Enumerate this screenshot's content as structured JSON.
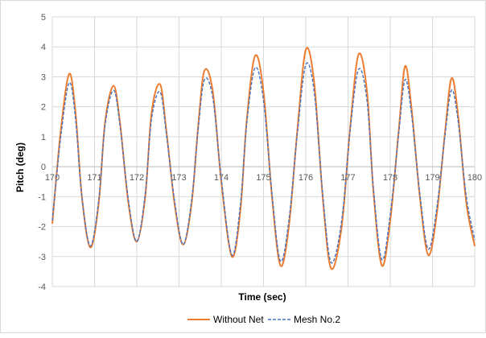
{
  "chart_data": {
    "type": "line",
    "title": "",
    "xlabel": "Time (sec)",
    "ylabel": "Pitch (deg)",
    "xlim": [
      170,
      180
    ],
    "ylim": [
      -4,
      5
    ],
    "x_ticks": [
      "170",
      "171",
      "172",
      "173",
      "174",
      "175",
      "176",
      "177",
      "178",
      "179",
      "180"
    ],
    "y_ticks": [
      "-4",
      "-3",
      "-2",
      "-1",
      "0",
      "1",
      "2",
      "3",
      "4",
      "5"
    ],
    "grid": true,
    "legend_position": "bottom",
    "series": [
      {
        "name": "Without Net",
        "color": "#ED7D31",
        "dash": "solid",
        "x": [
          170.0,
          170.2,
          170.4,
          170.55,
          170.7,
          170.9,
          171.1,
          171.25,
          171.45,
          171.6,
          171.8,
          172.0,
          172.2,
          172.35,
          172.55,
          172.7,
          172.9,
          173.1,
          173.3,
          173.45,
          173.6,
          173.8,
          174.0,
          174.25,
          174.45,
          174.6,
          174.8,
          175.0,
          175.2,
          175.4,
          175.6,
          175.8,
          176.0,
          176.2,
          176.4,
          176.6,
          176.85,
          177.05,
          177.25,
          177.45,
          177.6,
          177.8,
          178.0,
          178.2,
          178.35,
          178.5,
          178.7,
          178.9,
          179.1,
          179.3,
          179.45,
          179.6,
          179.8,
          180.0
        ],
        "y": [
          -1.9,
          1.2,
          3.1,
          1.8,
          -1.0,
          -2.7,
          -1.2,
          1.5,
          2.7,
          1.5,
          -1.2,
          -2.5,
          -1.0,
          1.8,
          2.75,
          1.2,
          -1.3,
          -2.6,
          -1.2,
          1.3,
          3.2,
          2.5,
          -0.5,
          -3.0,
          -1.5,
          1.5,
          3.7,
          2.5,
          -1.0,
          -3.3,
          -2.0,
          1.2,
          3.9,
          2.8,
          -1.0,
          -3.4,
          -2.0,
          1.3,
          3.75,
          2.5,
          -0.8,
          -3.3,
          -1.8,
          1.2,
          3.35,
          2.0,
          -1.0,
          -2.95,
          -1.6,
          1.2,
          2.95,
          1.8,
          -1.2,
          -2.65
        ]
      },
      {
        "name": "Mesh No.2",
        "color": "#4472C4",
        "dash": "dashed",
        "x": [
          170.0,
          170.2,
          170.4,
          170.55,
          170.7,
          170.9,
          171.1,
          171.25,
          171.45,
          171.6,
          171.8,
          172.0,
          172.2,
          172.35,
          172.55,
          172.7,
          172.9,
          173.1,
          173.3,
          173.45,
          173.6,
          173.8,
          174.0,
          174.25,
          174.45,
          174.6,
          174.8,
          175.0,
          175.2,
          175.4,
          175.6,
          175.8,
          176.0,
          176.2,
          176.4,
          176.6,
          176.85,
          177.05,
          177.25,
          177.45,
          177.6,
          177.8,
          178.0,
          178.2,
          178.35,
          178.5,
          178.7,
          178.9,
          179.1,
          179.3,
          179.45,
          179.6,
          179.8,
          180.0
        ],
        "y": [
          -1.8,
          1.0,
          2.8,
          1.6,
          -1.0,
          -2.65,
          -1.1,
          1.4,
          2.55,
          1.4,
          -1.1,
          -2.5,
          -0.9,
          1.6,
          2.5,
          1.1,
          -1.2,
          -2.6,
          -1.1,
          1.2,
          2.9,
          2.3,
          -0.4,
          -2.95,
          -1.3,
          1.4,
          3.3,
          2.2,
          -0.9,
          -3.15,
          -1.8,
          1.1,
          3.4,
          2.5,
          -0.9,
          -3.2,
          -1.8,
          1.2,
          3.25,
          2.2,
          -0.7,
          -3.1,
          -1.6,
          1.1,
          2.9,
          1.8,
          -0.9,
          -2.75,
          -1.4,
          1.1,
          2.55,
          1.6,
          -1.0,
          -2.45
        ]
      }
    ]
  }
}
